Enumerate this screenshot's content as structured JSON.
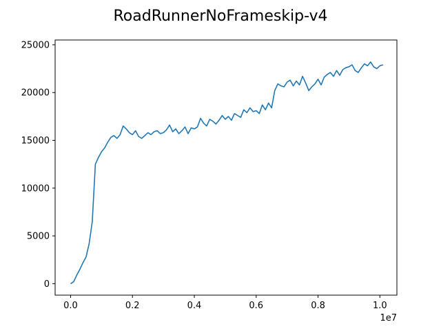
{
  "chart_data": {
    "type": "line",
    "title": "RoadRunnerNoFrameskip-v4",
    "xlabel": "",
    "ylabel": "",
    "x_offset_text": "1e7",
    "xlim": [
      -0.05,
      1.055
    ],
    "ylim": [
      -1200,
      25500
    ],
    "x_ticks": [
      0.0,
      0.2,
      0.4,
      0.6,
      0.8,
      1.0
    ],
    "x_tick_labels": [
      "0.0",
      "0.2",
      "0.4",
      "0.6",
      "0.8",
      "1.0"
    ],
    "y_ticks": [
      0,
      5000,
      10000,
      15000,
      20000,
      25000
    ],
    "y_tick_labels": [
      "0",
      "5000",
      "10000",
      "15000",
      "20000",
      "25000"
    ],
    "grid": false,
    "series": [
      {
        "color": "#1f77b4",
        "x": [
          0.0,
          0.01,
          0.02,
          0.03,
          0.04,
          0.05,
          0.06,
          0.07,
          0.08,
          0.09,
          0.1,
          0.11,
          0.12,
          0.13,
          0.14,
          0.15,
          0.16,
          0.17,
          0.18,
          0.19,
          0.2,
          0.21,
          0.22,
          0.23,
          0.24,
          0.25,
          0.26,
          0.27,
          0.28,
          0.29,
          0.3,
          0.31,
          0.32,
          0.33,
          0.34,
          0.35,
          0.36,
          0.37,
          0.38,
          0.39,
          0.4,
          0.41,
          0.42,
          0.43,
          0.44,
          0.45,
          0.46,
          0.47,
          0.48,
          0.49,
          0.5,
          0.51,
          0.52,
          0.53,
          0.54,
          0.55,
          0.56,
          0.57,
          0.58,
          0.59,
          0.6,
          0.61,
          0.62,
          0.63,
          0.64,
          0.65,
          0.66,
          0.67,
          0.68,
          0.69,
          0.7,
          0.71,
          0.72,
          0.73,
          0.74,
          0.75,
          0.76,
          0.77,
          0.78,
          0.79,
          0.8,
          0.81,
          0.82,
          0.83,
          0.84,
          0.85,
          0.86,
          0.87,
          0.88,
          0.89,
          0.9,
          0.91,
          0.92,
          0.93,
          0.94,
          0.95,
          0.96,
          0.97,
          0.98,
          0.99,
          1.0,
          1.01
        ],
        "y": [
          0,
          200,
          900,
          1500,
          2200,
          2800,
          4200,
          6500,
          12500,
          13200,
          13800,
          14200,
          14800,
          15300,
          15500,
          15200,
          15600,
          16500,
          16200,
          15800,
          15600,
          16000,
          15400,
          15200,
          15500,
          15800,
          15600,
          15900,
          16000,
          15700,
          15800,
          16100,
          16600,
          15900,
          16200,
          15700,
          16000,
          16400,
          15700,
          16300,
          16200,
          16400,
          17300,
          16800,
          16500,
          17200,
          17000,
          16700,
          17100,
          17600,
          17200,
          17500,
          17100,
          17800,
          17600,
          17400,
          18200,
          17900,
          18400,
          18000,
          18100,
          17800,
          18700,
          18200,
          18900,
          18400,
          20200,
          20900,
          20700,
          20600,
          21100,
          21300,
          20700,
          21200,
          20800,
          21700,
          21000,
          20200,
          20600,
          20900,
          21400,
          20800,
          21600,
          21900,
          22100,
          21700,
          22300,
          21800,
          22400,
          22600,
          22700,
          22900,
          22300,
          22100,
          22600,
          23000,
          22800,
          23200,
          22700,
          22500,
          22800,
          22900
        ]
      }
    ]
  }
}
